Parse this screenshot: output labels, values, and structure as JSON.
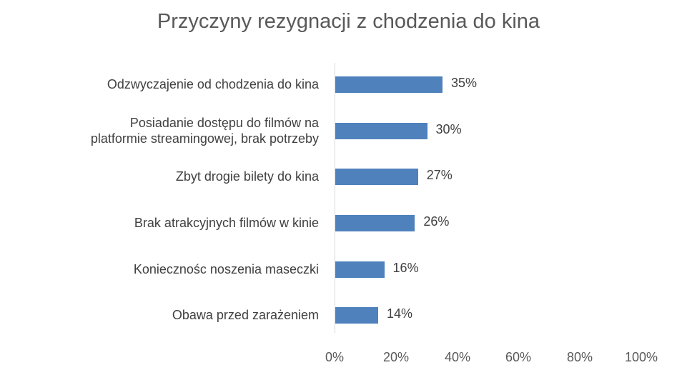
{
  "chart_data": {
    "type": "bar",
    "orientation": "horizontal",
    "title": "Przyczyny rezygnacji z chodzenia do kina",
    "categories": [
      "Odzwyczajenie od chodzenia do kina",
      "Posiadanie dostępu do filmów na platformie streamingowej, brak potrzeby",
      "Zbyt drogie bilety do kina",
      "Brak atrakcyjnych filmów w kinie",
      "Koniecznośc noszenia maseczki",
      "Obawa przed zarażeniem"
    ],
    "values": [
      35,
      30,
      27,
      26,
      16,
      14
    ],
    "value_labels": [
      "35%",
      "30%",
      "27%",
      "26%",
      "16%",
      "14%"
    ],
    "xlabel": "",
    "ylabel": "",
    "xlim": [
      0,
      100
    ],
    "x_ticks": [
      "0%",
      "20%",
      "40%",
      "60%",
      "80%",
      "100%"
    ],
    "grid": false,
    "legend": null,
    "bar_color": "#4f81bd"
  },
  "rows": [
    {
      "line1": "Odzwyczajenie od chodzenia do kina",
      "line2": "",
      "value": 35,
      "label": "35%"
    },
    {
      "line1": "Posiadanie dostępu do filmów na",
      "line2": "platformie streamingowej, brak potrzeby",
      "value": 30,
      "label": "30%"
    },
    {
      "line1": "Zbyt drogie bilety do kina",
      "line2": "",
      "value": 27,
      "label": "27%"
    },
    {
      "line1": "Brak atrakcyjnych filmów w kinie",
      "line2": "",
      "value": 26,
      "label": "26%"
    },
    {
      "line1": "Koniecznośc noszenia maseczki",
      "line2": "",
      "value": 16,
      "label": "16%"
    },
    {
      "line1": "Obawa przed zarażeniem",
      "line2": "",
      "value": 14,
      "label": "14%"
    }
  ]
}
